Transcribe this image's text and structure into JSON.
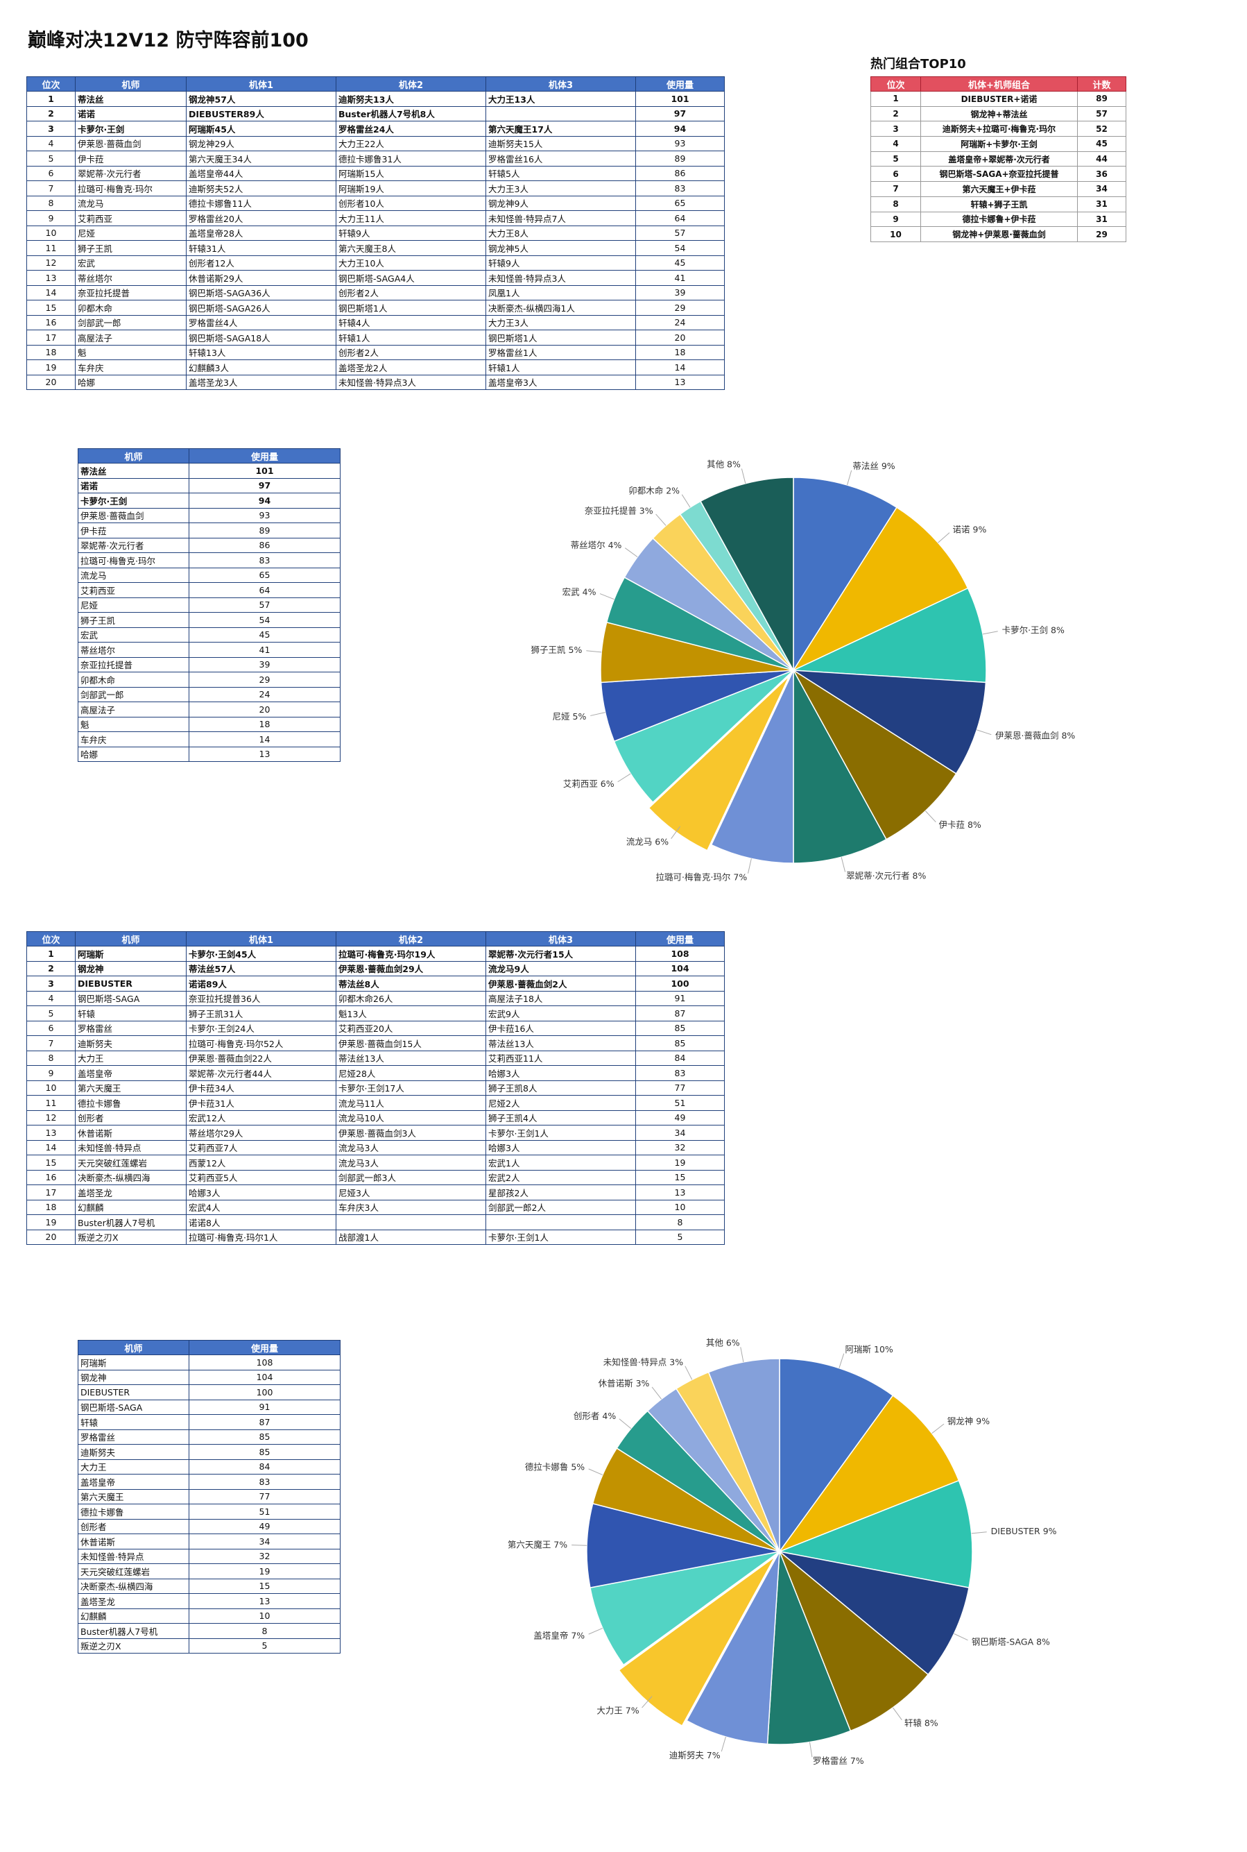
{
  "page": {
    "title": "巅峰对决12V12 防守阵容前100"
  },
  "colors": {
    "header_blue": "#4472c4",
    "header_red": "#e2505f"
  },
  "table1": {
    "headers": [
      "位次",
      "机师",
      "机体1",
      "机体2",
      "机体3",
      "使用量"
    ],
    "rows": [
      [
        "1",
        "蒂法丝",
        "钢龙神57人",
        "迪斯努夫13人",
        "大力王13人",
        "101"
      ],
      [
        "2",
        "诺诺",
        "DIEBUSTER89人",
        "Buster机器人7号机8人",
        "",
        "97"
      ],
      [
        "3",
        "卡萝尔·王剑",
        "阿瑞斯45人",
        "罗格雷丝24人",
        "第六天魔王17人",
        "94"
      ],
      [
        "4",
        "伊莱恩·蔷薇血剑",
        "钢龙神29人",
        "大力王22人",
        "迪斯努夫15人",
        "93"
      ],
      [
        "5",
        "伊卡菈",
        "第六天魔王34人",
        "德拉卡娜鲁31人",
        "罗格雷丝16人",
        "89"
      ],
      [
        "6",
        "翠妮蒂·次元行者",
        "盖塔皇帝44人",
        "阿瑞斯15人",
        "轩辕5人",
        "86"
      ],
      [
        "7",
        "拉璐可·梅鲁克·玛尔",
        "迪斯努夫52人",
        "阿瑞斯19人",
        "大力王3人",
        "83"
      ],
      [
        "8",
        "流龙马",
        "德拉卡娜鲁11人",
        "创形者10人",
        "钢龙神9人",
        "65"
      ],
      [
        "9",
        "艾莉西亚",
        "罗格雷丝20人",
        "大力王11人",
        "未知怪兽·特异点7人",
        "64"
      ],
      [
        "10",
        "尼娅",
        "盖塔皇帝28人",
        "轩辕9人",
        "大力王8人",
        "57"
      ],
      [
        "11",
        "狮子王凯",
        "轩辕31人",
        "第六天魔王8人",
        "钢龙神5人",
        "54"
      ],
      [
        "12",
        "宏武",
        "创形者12人",
        "大力王10人",
        "轩辕9人",
        "45"
      ],
      [
        "13",
        "蒂丝塔尔",
        "休普诺斯29人",
        "钢巴斯塔-SAGA4人",
        "未知怪兽·特异点3人",
        "41"
      ],
      [
        "14",
        "奈亚拉托提普",
        "钢巴斯塔-SAGA36人",
        "创形者2人",
        "凤凰1人",
        "39"
      ],
      [
        "15",
        "卯都木命",
        "钢巴斯塔-SAGA26人",
        "钢巴斯塔1人",
        "决断豪杰-纵横四海1人",
        "29"
      ],
      [
        "16",
        "剑部武一郎",
        "罗格雷丝4人",
        "轩辕4人",
        "大力王3人",
        "24"
      ],
      [
        "17",
        "高屋法子",
        "钢巴斯塔-SAGA18人",
        "轩辕1人",
        "钢巴斯塔1人",
        "20"
      ],
      [
        "18",
        "魁",
        "轩辕13人",
        "创形者2人",
        "罗格雷丝1人",
        "18"
      ],
      [
        "19",
        "车弁庆",
        "幻麒麟3人",
        "盖塔圣龙2人",
        "轩辕1人",
        "14"
      ],
      [
        "20",
        "哈娜",
        "盖塔圣龙3人",
        "未知怪兽·特异点3人",
        "盖塔皇帝3人",
        "13"
      ]
    ]
  },
  "top10": {
    "title": "热门组合TOP10",
    "headers": [
      "位次",
      "机体+机师组合",
      "计数"
    ],
    "rows": [
      [
        "1",
        "DIEBUSTER+诺诺",
        "89"
      ],
      [
        "2",
        "钢龙神+蒂法丝",
        "57"
      ],
      [
        "3",
        "迪斯努夫+拉璐可·梅鲁克·玛尔",
        "52"
      ],
      [
        "4",
        "阿瑞斯+卡萝尔·王剑",
        "45"
      ],
      [
        "5",
        "盖塔皇帝+翠妮蒂·次元行者",
        "44"
      ],
      [
        "6",
        "钢巴斯塔-SAGA+奈亚拉托提普",
        "36"
      ],
      [
        "7",
        "第六天魔王+伊卡菈",
        "34"
      ],
      [
        "8",
        "轩辕+狮子王凯",
        "31"
      ],
      [
        "9",
        "德拉卡娜鲁+伊卡菈",
        "31"
      ],
      [
        "10",
        "钢龙神+伊莱恩·蔷薇血剑",
        "29"
      ]
    ]
  },
  "table2": {
    "headers": [
      "机师",
      "使用量"
    ],
    "rows": [
      [
        "蒂法丝",
        "101"
      ],
      [
        "诺诺",
        "97"
      ],
      [
        "卡萝尔·王剑",
        "94"
      ],
      [
        "伊莱恩·蔷薇血剑",
        "93"
      ],
      [
        "伊卡菈",
        "89"
      ],
      [
        "翠妮蒂·次元行者",
        "86"
      ],
      [
        "拉璐可·梅鲁克·玛尔",
        "83"
      ],
      [
        "流龙马",
        "65"
      ],
      [
        "艾莉西亚",
        "64"
      ],
      [
        "尼娅",
        "57"
      ],
      [
        "狮子王凯",
        "54"
      ],
      [
        "宏武",
        "45"
      ],
      [
        "蒂丝塔尔",
        "41"
      ],
      [
        "奈亚拉托提普",
        "39"
      ],
      [
        "卯都木命",
        "29"
      ],
      [
        "剑部武一郎",
        "24"
      ],
      [
        "高屋法子",
        "20"
      ],
      [
        "魁",
        "18"
      ],
      [
        "车弁庆",
        "14"
      ],
      [
        "哈娜",
        "13"
      ]
    ]
  },
  "table3": {
    "headers": [
      "位次",
      "机师",
      "机体1",
      "机体2",
      "机体3",
      "使用量"
    ],
    "rows": [
      [
        "1",
        "阿瑞斯",
        "卡萝尔·王剑45人",
        "拉璐可·梅鲁克·玛尔19人",
        "翠妮蒂·次元行者15人",
        "108"
      ],
      [
        "2",
        "钢龙神",
        "蒂法丝57人",
        "伊莱恩·蔷薇血剑29人",
        "流龙马9人",
        "104"
      ],
      [
        "3",
        "DIEBUSTER",
        "诺诺89人",
        "蒂法丝8人",
        "伊莱恩·蔷薇血剑2人",
        "100"
      ],
      [
        "4",
        "钢巴斯塔-SAGA",
        "奈亚拉托提普36人",
        "卯都木命26人",
        "高屋法子18人",
        "91"
      ],
      [
        "5",
        "轩辕",
        "狮子王凯31人",
        "魁13人",
        "宏武9人",
        "87"
      ],
      [
        "6",
        "罗格雷丝",
        "卡萝尔·王剑24人",
        "艾莉西亚20人",
        "伊卡菈16人",
        "85"
      ],
      [
        "7",
        "迪斯努夫",
        "拉璐可·梅鲁克·玛尔52人",
        "伊莱恩·蔷薇血剑15人",
        "蒂法丝13人",
        "85"
      ],
      [
        "8",
        "大力王",
        "伊莱恩·蔷薇血剑22人",
        "蒂法丝13人",
        "艾莉西亚11人",
        "84"
      ],
      [
        "9",
        "盖塔皇帝",
        "翠妮蒂·次元行者44人",
        "尼娅28人",
        "哈娜3人",
        "83"
      ],
      [
        "10",
        "第六天魔王",
        "伊卡菈34人",
        "卡萝尔·王剑17人",
        "狮子王凯8人",
        "77"
      ],
      [
        "11",
        "德拉卡娜鲁",
        "伊卡菈31人",
        "流龙马11人",
        "尼娅2人",
        "51"
      ],
      [
        "12",
        "创形者",
        "宏武12人",
        "流龙马10人",
        "狮子王凯4人",
        "49"
      ],
      [
        "13",
        "休普诺斯",
        "蒂丝塔尔29人",
        "伊莱恩·蔷薇血剑3人",
        "卡萝尔·王剑1人",
        "34"
      ],
      [
        "14",
        "未知怪兽·特异点",
        "艾莉西亚7人",
        "流龙马3人",
        "哈娜3人",
        "32"
      ],
      [
        "15",
        "天元突破红莲螺岩",
        "西蒙12人",
        "流龙马3人",
        "宏武1人",
        "19"
      ],
      [
        "16",
        "决断豪杰-纵横四海",
        "艾莉西亚5人",
        "剑部武一郎3人",
        "宏武2人",
        "15"
      ],
      [
        "17",
        "盖塔圣龙",
        "哈娜3人",
        "尼娅3人",
        "星部孩2人",
        "13"
      ],
      [
        "18",
        "幻麒麟",
        "宏武4人",
        "车弁庆3人",
        "剑部武一郎2人",
        "10"
      ],
      [
        "19",
        "Buster机器人7号机",
        "诺诺8人",
        "",
        "",
        "8"
      ],
      [
        "20",
        "叛逆之刃X",
        "拉璐可·梅鲁克·玛尔1人",
        "战部渡1人",
        "卡萝尔·王剑1人",
        "5"
      ]
    ]
  },
  "table4": {
    "headers": [
      "机师",
      "使用量"
    ],
    "rows": [
      [
        "阿瑞斯",
        "108"
      ],
      [
        "钢龙神",
        "104"
      ],
      [
        "DIEBUSTER",
        "100"
      ],
      [
        "钢巴斯塔-SAGA",
        "91"
      ],
      [
        "轩辕",
        "87"
      ],
      [
        "罗格雷丝",
        "85"
      ],
      [
        "迪斯努夫",
        "85"
      ],
      [
        "大力王",
        "84"
      ],
      [
        "盖塔皇帝",
        "83"
      ],
      [
        "第六天魔王",
        "77"
      ],
      [
        "德拉卡娜鲁",
        "51"
      ],
      [
        "创形者",
        "49"
      ],
      [
        "休普诺斯",
        "34"
      ],
      [
        "未知怪兽·特异点",
        "32"
      ],
      [
        "天元突破红莲螺岩",
        "19"
      ],
      [
        "决断豪杰-纵横四海",
        "15"
      ],
      [
        "盖塔圣龙",
        "13"
      ],
      [
        "幻麒麟",
        "10"
      ],
      [
        "Buster机器人7号机",
        "8"
      ],
      [
        "叛逆之刃X",
        "5"
      ]
    ]
  },
  "chart_data": [
    {
      "type": "pie",
      "slices": [
        {
          "label": "蒂法丝",
          "pct": "9%",
          "value": 9,
          "color": "#4472c4"
        },
        {
          "label": "诺诺",
          "pct": "9%",
          "value": 9,
          "color": "#f0b800"
        },
        {
          "label": "卡萝尔·王剑",
          "pct": "8%",
          "value": 8,
          "color": "#2ec4b0"
        },
        {
          "label": "伊莱恩·蔷薇血剑",
          "pct": "8%",
          "value": 8,
          "color": "#223f82"
        },
        {
          "label": "伊卡菈",
          "pct": "8%",
          "value": 8,
          "color": "#8a6d00"
        },
        {
          "label": "翠妮蒂·次元行者",
          "pct": "8%",
          "value": 8,
          "color": "#1e7b6d"
        },
        {
          "label": "拉璐可·梅鲁克·玛尔",
          "pct": "7%",
          "value": 7,
          "color": "#6f90d6"
        },
        {
          "label": "流龙马",
          "pct": "6%",
          "value": 6,
          "color": "#f8c62c"
        },
        {
          "label": "艾莉西亚",
          "pct": "6%",
          "value": 6,
          "color": "#52d4c4"
        },
        {
          "label": "尼娅",
          "pct": "5%",
          "value": 5,
          "color": "#3055b0"
        },
        {
          "label": "狮子王凯",
          "pct": "5%",
          "value": 5,
          "color": "#c29200"
        },
        {
          "label": "宏武",
          "pct": "4%",
          "value": 4,
          "color": "#279c8d"
        },
        {
          "label": "蒂丝塔尔",
          "pct": "4%",
          "value": 4,
          "color": "#8fa9de"
        },
        {
          "label": "奈亚拉托提普",
          "pct": "3%",
          "value": 3,
          "color": "#fad35a"
        },
        {
          "label": "卯都木命",
          "pct": "2%",
          "value": 2,
          "color": "#7ddbd0"
        },
        {
          "label": "其他",
          "pct": "8%",
          "value": 8,
          "color": "#1a5e58"
        }
      ]
    },
    {
      "type": "pie",
      "slices": [
        {
          "label": "阿瑞斯",
          "pct": "10%",
          "value": 10,
          "color": "#4472c4"
        },
        {
          "label": "钢龙神",
          "pct": "9%",
          "value": 9,
          "color": "#f0b800"
        },
        {
          "label": "DIEBUSTER",
          "pct": "9%",
          "value": 9,
          "color": "#2ec4b0"
        },
        {
          "label": "钢巴斯塔-SAGA",
          "pct": "8%",
          "value": 8,
          "color": "#223f82"
        },
        {
          "label": "轩辕",
          "pct": "8%",
          "value": 8,
          "color": "#8a6d00"
        },
        {
          "label": "罗格雷丝",
          "pct": "7%",
          "value": 7,
          "color": "#1e7b6d"
        },
        {
          "label": "迪斯努夫",
          "pct": "7%",
          "value": 7,
          "color": "#6f90d6"
        },
        {
          "label": "大力王",
          "pct": "7%",
          "value": 7,
          "color": "#f8c62c"
        },
        {
          "label": "盖塔皇帝",
          "pct": "7%",
          "value": 7,
          "color": "#52d4c4"
        },
        {
          "label": "第六天魔王",
          "pct": "7%",
          "value": 7,
          "color": "#3055b0"
        },
        {
          "label": "德拉卡娜鲁",
          "pct": "5%",
          "value": 5,
          "color": "#c29200"
        },
        {
          "label": "创形者",
          "pct": "4%",
          "value": 4,
          "color": "#279c8d"
        },
        {
          "label": "休普诺斯",
          "pct": "3%",
          "value": 3,
          "color": "#8fa9de"
        },
        {
          "label": "未知怪兽·特异点",
          "pct": "3%",
          "value": 3,
          "color": "#fad35a"
        },
        {
          "label": "其他",
          "pct": "6%",
          "value": 6,
          "color": "#84a0da"
        }
      ]
    }
  ]
}
